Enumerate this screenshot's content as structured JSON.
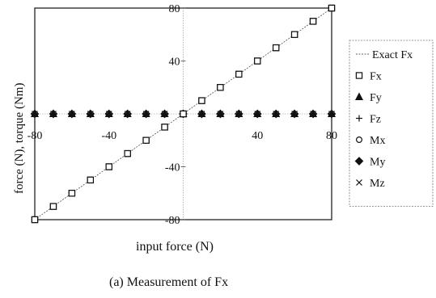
{
  "chart_data": {
    "type": "scatter",
    "title": "",
    "caption": "(a) Measurement of Fx",
    "xlabel": "input force (N)",
    "ylabel": "force (N),   torque (Nm)",
    "xlim": [
      -80,
      80
    ],
    "ylim": [
      -80,
      80
    ],
    "x_ticks": [
      "-80",
      "-40",
      "40",
      "80"
    ],
    "y_ticks": [
      "80",
      "40",
      "-40",
      "-80"
    ],
    "legend_position": "right",
    "x": [
      -80,
      -70,
      -60,
      -50,
      -40,
      -30,
      -20,
      -10,
      0,
      10,
      20,
      30,
      40,
      50,
      60,
      70,
      80
    ],
    "series": [
      {
        "name": "Exact Fx",
        "marker": "line",
        "values": [
          -80,
          -70,
          -60,
          -50,
          -40,
          -30,
          -20,
          -10,
          0,
          10,
          20,
          30,
          40,
          50,
          60,
          70,
          80
        ]
      },
      {
        "name": "Fx",
        "marker": "square",
        "values": [
          -80,
          -70,
          -60,
          -50,
          -40,
          -30,
          -20,
          -10,
          0,
          10,
          20,
          30,
          40,
          50,
          60,
          70,
          80
        ]
      },
      {
        "name": "Fy",
        "marker": "triangle",
        "values": [
          0,
          0,
          0,
          0,
          0,
          0,
          0,
          0,
          0,
          0,
          0,
          0,
          0,
          0,
          0,
          0,
          0
        ]
      },
      {
        "name": "Fz",
        "marker": "plus",
        "values": [
          0,
          0,
          0,
          0,
          0,
          0,
          0,
          0,
          0,
          0,
          0,
          0,
          0,
          0,
          0,
          0,
          0
        ]
      },
      {
        "name": "Mx",
        "marker": "circle",
        "values": [
          0,
          0,
          0,
          0,
          0,
          0,
          0,
          0,
          0,
          0,
          0,
          0,
          0,
          0,
          0,
          0,
          0
        ]
      },
      {
        "name": "My",
        "marker": "diamond",
        "values": [
          0,
          0,
          0,
          0,
          0,
          0,
          0,
          0,
          0,
          0,
          0,
          0,
          0,
          0,
          0,
          0,
          0
        ]
      },
      {
        "name": "Mz",
        "marker": "cross",
        "values": [
          0,
          0,
          0,
          0,
          0,
          0,
          0,
          0,
          0,
          0,
          0,
          0,
          0,
          0,
          0,
          0,
          0
        ]
      }
    ]
  }
}
